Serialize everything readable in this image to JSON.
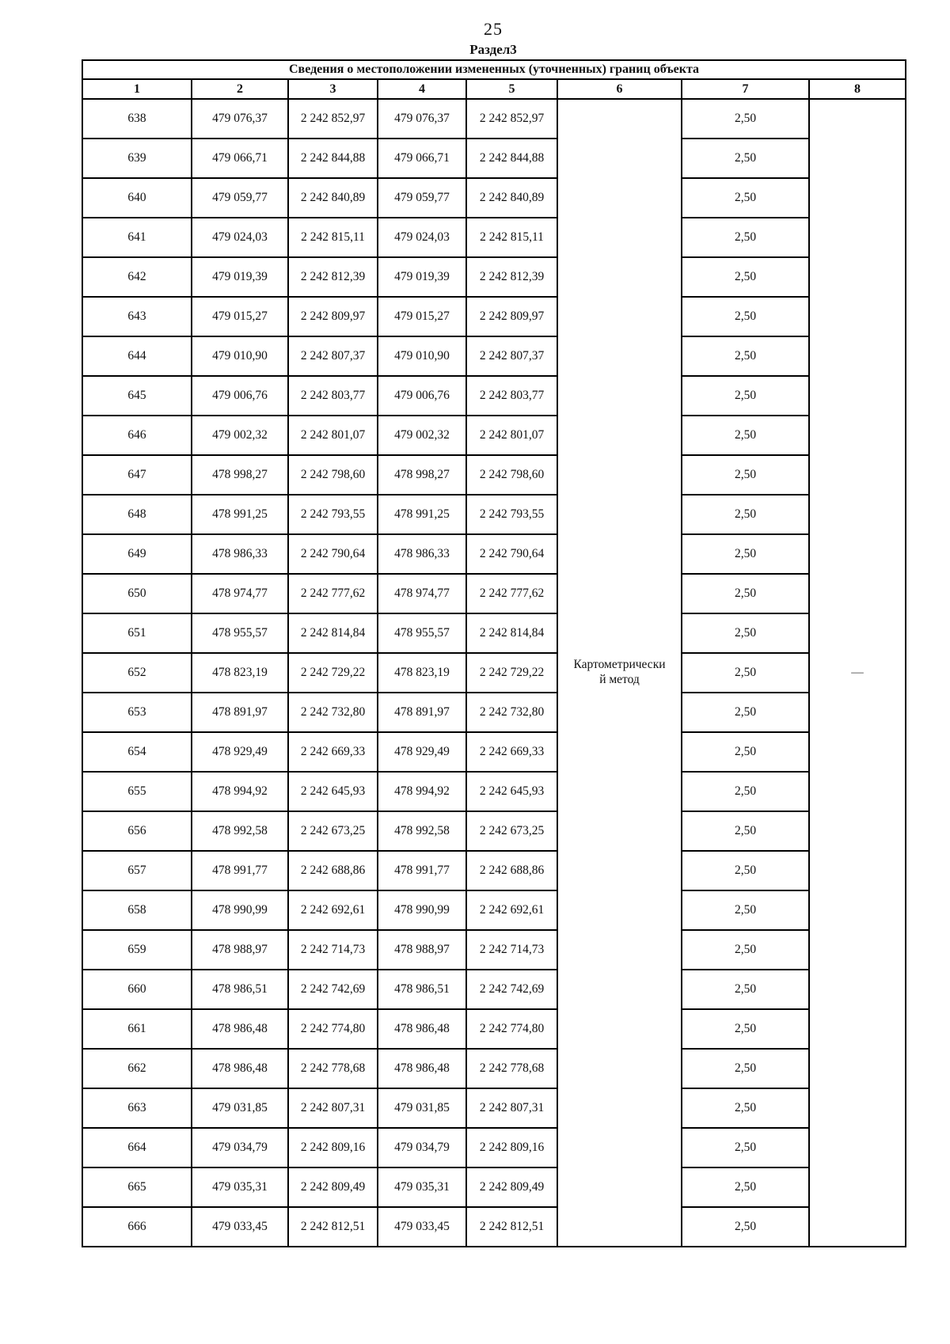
{
  "page": {
    "number": "25",
    "section_heading": "Раздел3"
  },
  "table": {
    "title": "Сведения о местоположении измененных (уточненных) границ объекта",
    "column_numbers": [
      "1",
      "2",
      "3",
      "4",
      "5",
      "6",
      "7",
      "8"
    ],
    "method_line1": "Картометрически",
    "method_line2": "й метод",
    "note_dash": "—",
    "rows": [
      [
        "638",
        "479 076,37",
        "2 242 852,97",
        "479 076,37",
        "2 242 852,97",
        "2,50"
      ],
      [
        "639",
        "479 066,71",
        "2 242 844,88",
        "479 066,71",
        "2 242 844,88",
        "2,50"
      ],
      [
        "640",
        "479 059,77",
        "2 242 840,89",
        "479 059,77",
        "2 242 840,89",
        "2,50"
      ],
      [
        "641",
        "479 024,03",
        "2 242 815,11",
        "479 024,03",
        "2 242 815,11",
        "2,50"
      ],
      [
        "642",
        "479 019,39",
        "2 242 812,39",
        "479 019,39",
        "2 242 812,39",
        "2,50"
      ],
      [
        "643",
        "479 015,27",
        "2 242 809,97",
        "479 015,27",
        "2 242 809,97",
        "2,50"
      ],
      [
        "644",
        "479 010,90",
        "2 242 807,37",
        "479 010,90",
        "2 242 807,37",
        "2,50"
      ],
      [
        "645",
        "479 006,76",
        "2 242 803,77",
        "479 006,76",
        "2 242 803,77",
        "2,50"
      ],
      [
        "646",
        "479 002,32",
        "2 242 801,07",
        "479 002,32",
        "2 242 801,07",
        "2,50"
      ],
      [
        "647",
        "478 998,27",
        "2 242 798,60",
        "478 998,27",
        "2 242 798,60",
        "2,50"
      ],
      [
        "648",
        "478 991,25",
        "2 242 793,55",
        "478 991,25",
        "2 242 793,55",
        "2,50"
      ],
      [
        "649",
        "478 986,33",
        "2 242 790,64",
        "478 986,33",
        "2 242 790,64",
        "2,50"
      ],
      [
        "650",
        "478 974,77",
        "2 242 777,62",
        "478 974,77",
        "2 242 777,62",
        "2,50"
      ],
      [
        "651",
        "478 955,57",
        "2 242 814,84",
        "478 955,57",
        "2 242 814,84",
        "2,50"
      ],
      [
        "652",
        "478 823,19",
        "2 242 729,22",
        "478 823,19",
        "2 242 729,22",
        "2,50"
      ],
      [
        "653",
        "478 891,97",
        "2 242 732,80",
        "478 891,97",
        "2 242 732,80",
        "2,50"
      ],
      [
        "654",
        "478 929,49",
        "2 242 669,33",
        "478 929,49",
        "2 242 669,33",
        "2,50"
      ],
      [
        "655",
        "478 994,92",
        "2 242 645,93",
        "478 994,92",
        "2 242 645,93",
        "2,50"
      ],
      [
        "656",
        "478 992,58",
        "2 242 673,25",
        "478 992,58",
        "2 242 673,25",
        "2,50"
      ],
      [
        "657",
        "478 991,77",
        "2 242 688,86",
        "478 991,77",
        "2 242 688,86",
        "2,50"
      ],
      [
        "658",
        "478 990,99",
        "2 242 692,61",
        "478 990,99",
        "2 242 692,61",
        "2,50"
      ],
      [
        "659",
        "478 988,97",
        "2 242 714,73",
        "478 988,97",
        "2 242 714,73",
        "2,50"
      ],
      [
        "660",
        "478 986,51",
        "2 242 742,69",
        "478 986,51",
        "2 242 742,69",
        "2,50"
      ],
      [
        "661",
        "478 986,48",
        "2 242 774,80",
        "478 986,48",
        "2 242 774,80",
        "2,50"
      ],
      [
        "662",
        "478 986,48",
        "2 242 778,68",
        "478 986,48",
        "2 242 778,68",
        "2,50"
      ],
      [
        "663",
        "479 031,85",
        "2 242 807,31",
        "479 031,85",
        "2 242 807,31",
        "2,50"
      ],
      [
        "664",
        "479 034,79",
        "2 242 809,16",
        "479 034,79",
        "2 242 809,16",
        "2,50"
      ],
      [
        "665",
        "479 035,31",
        "2 242 809,49",
        "479 035,31",
        "2 242 809,49",
        "2,50"
      ],
      [
        "666",
        "479 033,45",
        "2 242 812,51",
        "479 033,45",
        "2 242 812,51",
        "2,50"
      ]
    ]
  }
}
